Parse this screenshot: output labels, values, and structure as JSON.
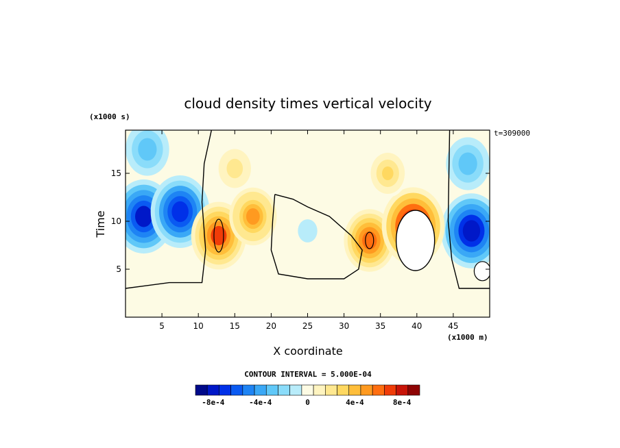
{
  "chart_data": {
    "type": "heatmap",
    "title": "cloud density times vertical velocity",
    "xlabel": "X coordinate",
    "ylabel": "Time",
    "x_unit": "(x1000 m)",
    "y_unit": "(x1000 s)",
    "time_label": "t=309000",
    "xlim": [
      0,
      50
    ],
    "ylim": [
      0,
      19.5
    ],
    "x_ticks": [
      5,
      10,
      15,
      20,
      25,
      30,
      35,
      40,
      45
    ],
    "y_ticks": [
      5,
      10,
      15
    ],
    "contour_interval": "CONTOUR INTERVAL = 5.000E-04",
    "colorbar": {
      "colors": [
        "#000a8a",
        "#0018c8",
        "#0030e8",
        "#0a5af2",
        "#1e84f4",
        "#3aa8f6",
        "#60c8f8",
        "#8adcfa",
        "#b8ecfa",
        "#fdfbe4",
        "#fff4c0",
        "#ffe890",
        "#ffd860",
        "#ffbe3a",
        "#ff9a20",
        "#ff6e10",
        "#f03c08",
        "#c81408",
        "#8e0404"
      ],
      "labels": [
        "-8e-4",
        "-4e-4",
        "0",
        "4e-4",
        "8e-4"
      ],
      "label_values": [
        -0.0008,
        -0.0004,
        0,
        0.0004,
        0.0008
      ],
      "min": -0.00095,
      "max": 0.00095
    },
    "features": [
      {
        "x": 2.5,
        "y": 10.5,
        "value": -0.00078
      },
      {
        "x": 7.5,
        "y": 11.0,
        "value": -0.00075
      },
      {
        "x": 47.5,
        "y": 9.0,
        "value": -0.0008
      },
      {
        "x": 3.0,
        "y": 17.5,
        "value": -0.00035
      },
      {
        "x": 47.0,
        "y": 16.0,
        "value": -0.00035
      },
      {
        "x": 12.8,
        "y": 8.5,
        "value": 0.00065
      },
      {
        "x": 17.5,
        "y": 10.5,
        "value": 0.00045
      },
      {
        "x": 15.0,
        "y": 15.5,
        "value": 0.0002
      },
      {
        "x": 33.5,
        "y": 8.0,
        "value": 0.00055
      },
      {
        "x": 39.5,
        "y": 9.5,
        "value": 0.00085
      },
      {
        "x": 36.0,
        "y": 15.0,
        "value": 0.00025
      },
      {
        "x": 25.0,
        "y": 9.0,
        "value": -0.0001
      }
    ]
  }
}
